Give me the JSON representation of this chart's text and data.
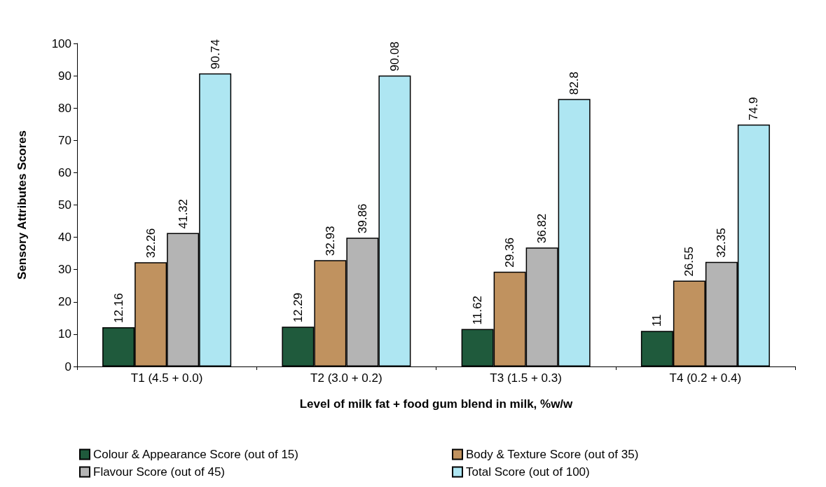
{
  "chart_data": {
    "type": "bar",
    "xlabel": "Level of milk fat + food gum blend in milk, %w/w",
    "ylabel": "Sensory Attributes Scores",
    "categories": [
      "T1 (4.5 + 0.0)",
      "T2 (3.0 + 0.2)",
      "T3 (1.5 + 0.3)",
      "T4 (0.2 + 0.4)"
    ],
    "series": [
      {
        "name": "Colour & Appearance Score (out of 15)",
        "color": "#1f5a3c",
        "values": [
          12.16,
          12.29,
          11.62,
          11
        ]
      },
      {
        "name": "Body & Texture Score (out of 35)",
        "color": "#c0925f",
        "values": [
          32.26,
          32.93,
          29.36,
          26.55
        ]
      },
      {
        "name": "Flavour Score (out of 45)",
        "color": "#b4b4b4",
        "values": [
          41.32,
          39.86,
          36.82,
          32.35
        ]
      },
      {
        "name": "Total Score (out of 100)",
        "color": "#aee6f2",
        "values": [
          90.74,
          90.08,
          82.8,
          74.9
        ]
      }
    ],
    "ylim": [
      0,
      100
    ],
    "yticks": [
      0,
      10,
      20,
      30,
      40,
      50,
      60,
      70,
      80,
      90,
      100
    ],
    "data_labels": true,
    "grid": false,
    "legend": "bottom"
  }
}
